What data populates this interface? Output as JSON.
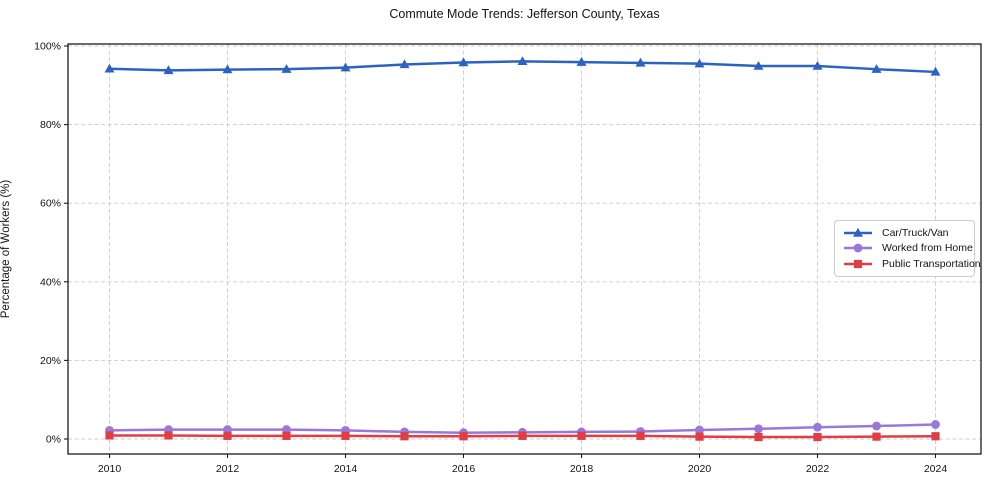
{
  "chart_data": {
    "type": "line",
    "title": "Commute Mode Trends: Jefferson County, Texas",
    "xlabel": "",
    "ylabel": "Percentage of Workers (%)",
    "x": [
      2010,
      2011,
      2012,
      2013,
      2014,
      2015,
      2016,
      2017,
      2018,
      2019,
      2020,
      2021,
      2022,
      2023,
      2024
    ],
    "x_ticks": [
      2010,
      2012,
      2014,
      2016,
      2018,
      2020,
      2022,
      2024
    ],
    "y_ticks": [
      0,
      20,
      40,
      60,
      80,
      100
    ],
    "y_tick_suffix": "%",
    "ylim": [
      0,
      100
    ],
    "grid": true,
    "grid_style": "dashed",
    "legend_position": "center-right",
    "series": [
      {
        "name": "Car/Truck/Van",
        "color": "#2c63c2",
        "marker": "triangle",
        "values": [
          94.2,
          93.8,
          94.0,
          94.1,
          94.5,
          95.3,
          95.8,
          96.1,
          95.9,
          95.7,
          95.5,
          94.9,
          94.9,
          94.1,
          93.4
        ]
      },
      {
        "name": "Worked from Home",
        "color": "#9878d8",
        "marker": "circle",
        "values": [
          2.2,
          2.4,
          2.4,
          2.4,
          2.2,
          1.8,
          1.6,
          1.7,
          1.8,
          1.9,
          2.3,
          2.6,
          3.0,
          3.3,
          3.7
        ]
      },
      {
        "name": "Public Transportation",
        "color": "#e03e45",
        "marker": "square",
        "values": [
          0.9,
          0.9,
          0.8,
          0.8,
          0.8,
          0.7,
          0.7,
          0.8,
          0.8,
          0.8,
          0.6,
          0.5,
          0.5,
          0.6,
          0.7
        ]
      }
    ]
  }
}
